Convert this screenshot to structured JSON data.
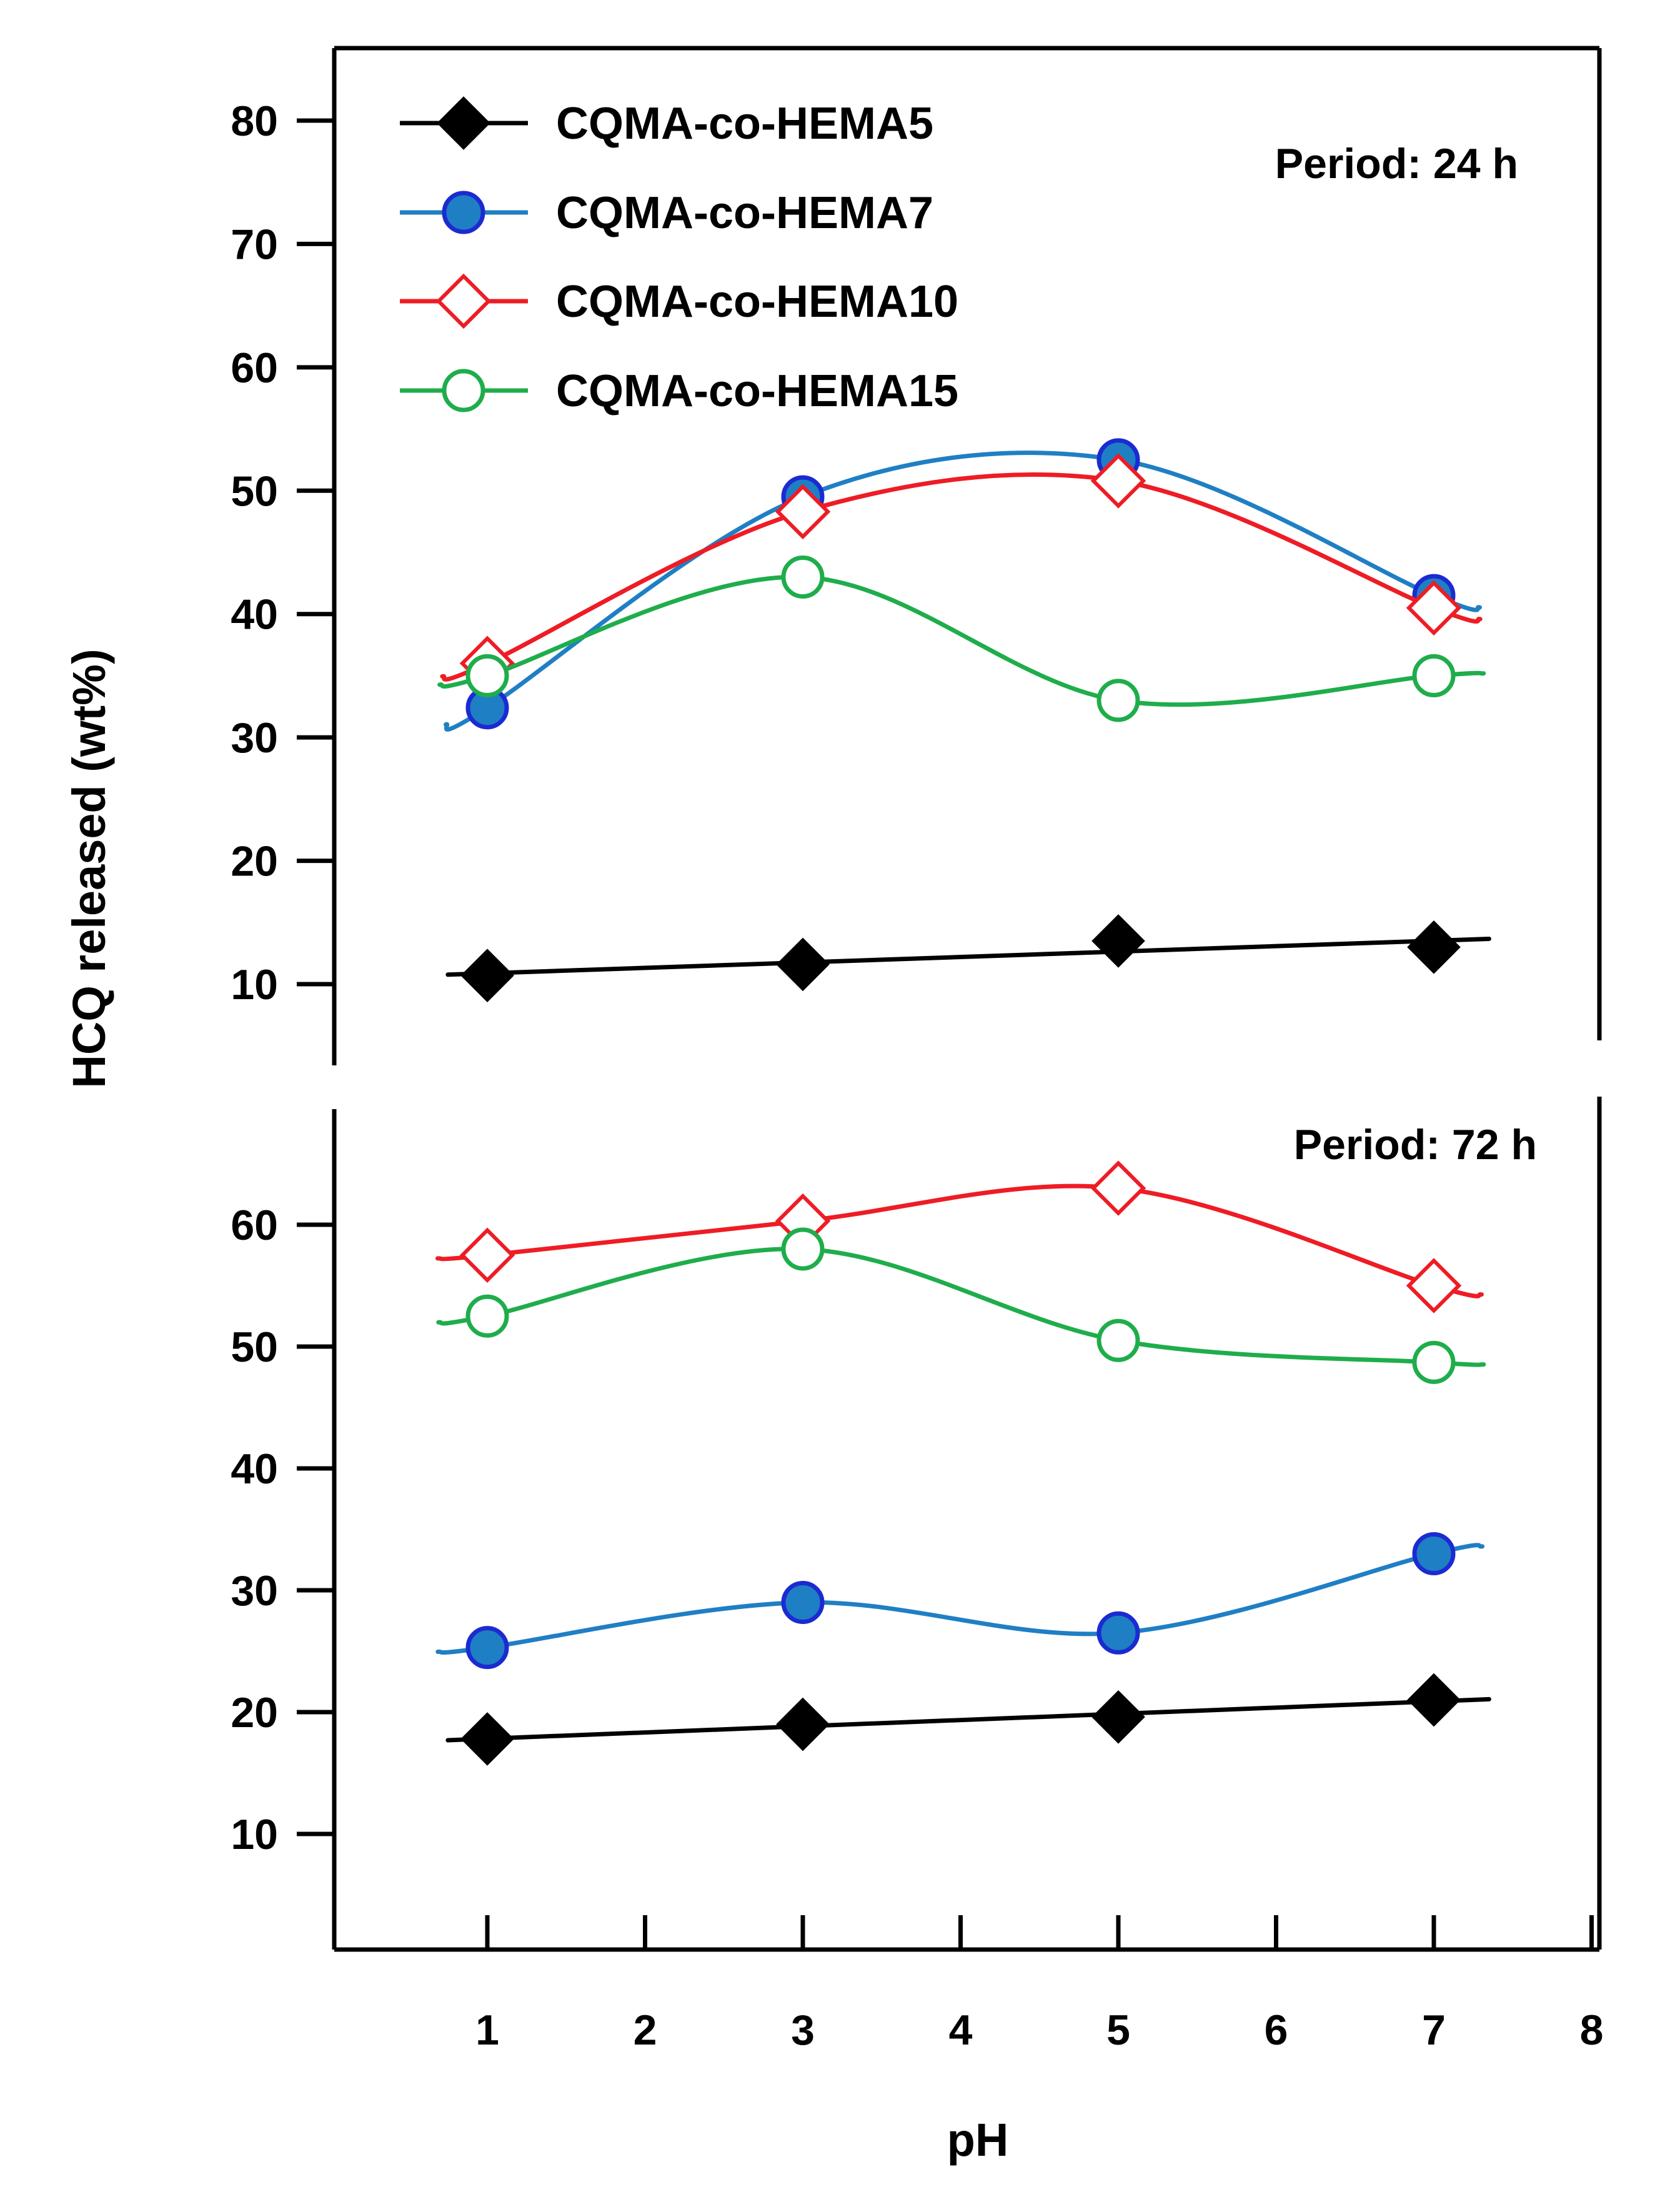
{
  "figure": {
    "ylabel": "HCQ released (wt%)",
    "xlabel": "pH"
  },
  "chart_data": [
    {
      "type": "line",
      "panel": "top",
      "annotation": "Period: 24 h",
      "xlabel": "",
      "ylabel": "HCQ released (wt%)",
      "yticks": [
        10,
        20,
        30,
        40,
        50,
        60,
        70,
        80
      ],
      "ylim": [
        5,
        85
      ],
      "xlim": [
        0.0,
        8.3
      ],
      "grid": false,
      "legend": "top-left",
      "series": [
        {
          "name": "CQMA-co-HEMA5",
          "color": "#000000",
          "marker": "diamond-filled",
          "x": [
            1,
            3,
            5,
            7
          ],
          "y": [
            10.7,
            11.6,
            13.5,
            13.0
          ]
        },
        {
          "name": "CQMA-co-HEMA7",
          "color": "#1f7fc4",
          "marker": "circle-filled",
          "x": [
            1,
            3,
            5,
            7
          ],
          "y": [
            32.4,
            49.5,
            52.5,
            41.5
          ]
        },
        {
          "name": "CQMA-co-HEMA10",
          "color": "#ee1c25",
          "marker": "diamond-open",
          "x": [
            1,
            3,
            5,
            7
          ],
          "y": [
            36.0,
            48.3,
            50.8,
            40.5
          ]
        },
        {
          "name": "CQMA-co-HEMA15",
          "color": "#1fad4b",
          "marker": "circle-open",
          "x": [
            1,
            3,
            5,
            7
          ],
          "y": [
            35.0,
            43.0,
            33.0,
            35.0
          ]
        }
      ]
    },
    {
      "type": "line",
      "panel": "bottom",
      "annotation": "Period: 72 h",
      "xlabel": "pH",
      "ylabel": "HCQ released (wt%)",
      "yticks": [
        10,
        20,
        30,
        40,
        50,
        60
      ],
      "ylim": [
        0,
        70
      ],
      "xlim": [
        0.0,
        8.3
      ],
      "xticks": [
        1,
        2,
        3,
        4,
        5,
        6,
        7,
        8
      ],
      "grid": false,
      "series": [
        {
          "name": "CQMA-co-HEMA5",
          "color": "#000000",
          "marker": "diamond-filled",
          "x": [
            1,
            3,
            5,
            7
          ],
          "y": [
            17.8,
            19.0,
            19.6,
            21.0
          ]
        },
        {
          "name": "CQMA-co-HEMA7",
          "color": "#1f7fc4",
          "marker": "circle-filled",
          "x": [
            1,
            3,
            5,
            7
          ],
          "y": [
            25.3,
            29.0,
            26.5,
            33.0
          ]
        },
        {
          "name": "CQMA-co-HEMA10",
          "color": "#ee1c25",
          "marker": "diamond-open",
          "x": [
            1,
            3,
            5,
            7
          ],
          "y": [
            57.5,
            60.3,
            63.0,
            55.0
          ]
        },
        {
          "name": "CQMA-co-HEMA15",
          "color": "#1fad4b",
          "marker": "circle-open",
          "x": [
            1,
            3,
            5,
            7
          ],
          "y": [
            52.5,
            58.0,
            50.5,
            48.7
          ]
        }
      ]
    }
  ]
}
